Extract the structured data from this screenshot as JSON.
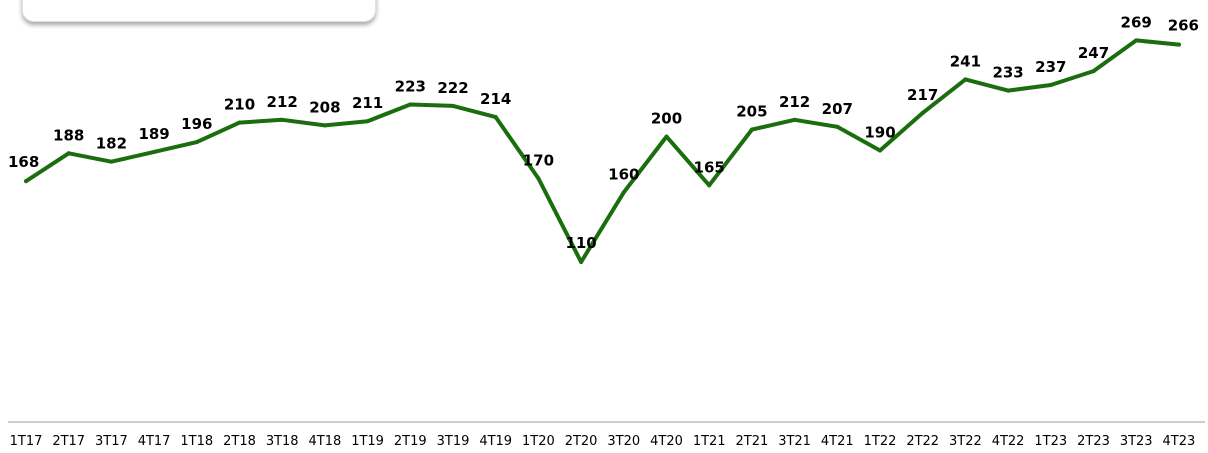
{
  "chart_data": {
    "type": "line",
    "categories": [
      "1T17",
      "2T17",
      "3T17",
      "4T17",
      "1T18",
      "2T18",
      "3T18",
      "4T18",
      "1T19",
      "2T19",
      "3T19",
      "4T19",
      "1T20",
      "2T20",
      "3T20",
      "4T20",
      "1T21",
      "2T21",
      "3T21",
      "4T21",
      "1T22",
      "2T22",
      "3T22",
      "4T22",
      "1T23",
      "2T23",
      "3T23",
      "4T23"
    ],
    "series": [
      {
        "values": [
          168,
          188,
          182,
          189,
          196,
          210,
          212,
          208,
          211,
          223,
          222,
          214,
          170,
          110,
          160,
          200,
          165,
          205,
          212,
          207,
          190,
          217,
          241,
          233,
          237,
          247,
          269,
          266
        ],
        "color": "#1a6e0d"
      }
    ],
    "ylim": [
      0,
      285
    ],
    "grid": false,
    "axis_line_color": "#bdbdbd"
  }
}
